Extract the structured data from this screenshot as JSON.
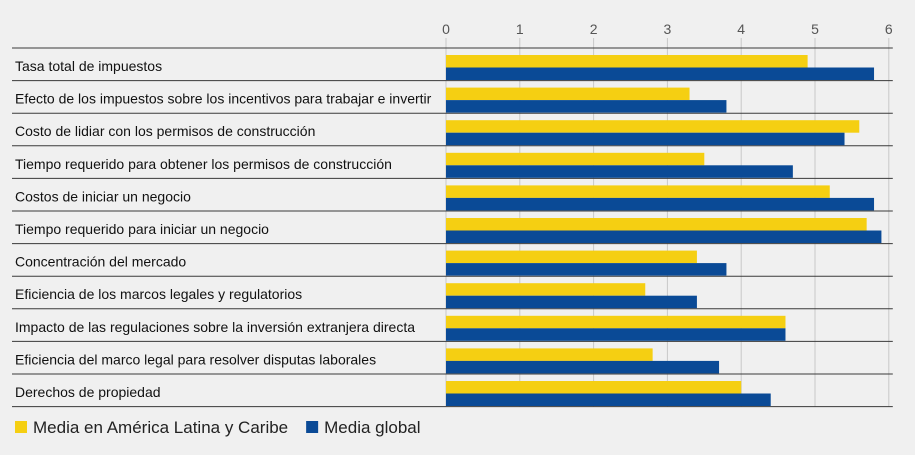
{
  "chart_data": {
    "type": "bar",
    "orientation": "horizontal",
    "categories": [
      "Tasa total de impuestos",
      "Efecto de los impuestos sobre los incentivos para trabajar e invertir",
      "Costo de lidiar con los permisos de construcción",
      "Tiempo requerido para obtener los permisos de construcción",
      "Costos de iniciar un negocio",
      "Tiempo requerido para iniciar un negocio",
      "Concentración del mercado",
      "Eficiencia de los marcos legales y regulatorios",
      "Impacto de las regulaciones sobre la inversión extranjera directa",
      "Eficiencia del marco legal para resolver disputas laborales",
      "Derechos de propiedad"
    ],
    "series": [
      {
        "name": "Media en América Latina y Caribe",
        "color": "#f5cf12",
        "values": [
          4.9,
          3.3,
          5.6,
          3.5,
          5.2,
          5.7,
          3.4,
          2.7,
          4.6,
          2.8,
          4.0
        ]
      },
      {
        "name": "Media global",
        "color": "#0a4a96",
        "values": [
          5.8,
          3.8,
          5.4,
          4.7,
          5.8,
          5.9,
          3.8,
          3.4,
          4.6,
          3.7,
          4.4
        ]
      }
    ],
    "xlim": [
      0,
      6
    ],
    "ticks": [
      0,
      1,
      2,
      3,
      4,
      5,
      6
    ],
    "tick_labels": [
      "0",
      "1",
      "2",
      "3",
      "4",
      "5",
      "6"
    ],
    "grid": true,
    "legend_position": "bottom-left",
    "title": "",
    "xlabel": "",
    "ylabel": ""
  }
}
